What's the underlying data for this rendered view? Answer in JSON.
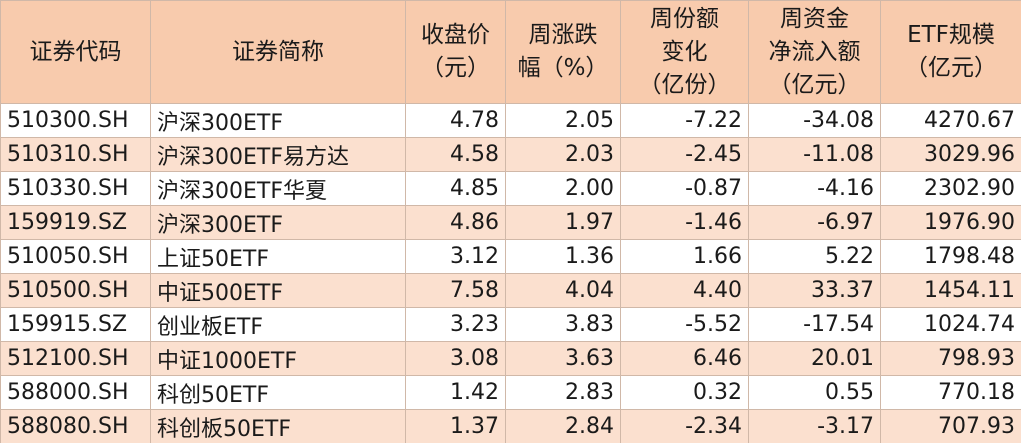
{
  "table": {
    "header": [
      [
        "证券代码"
      ],
      [
        "证券简称"
      ],
      [
        "收盘价",
        "（元）"
      ],
      [
        "周涨跌",
        "幅（%）"
      ],
      [
        "周份额",
        "变化",
        "（亿份）"
      ],
      [
        "周资金",
        "净流入额",
        "（亿元）"
      ],
      [
        "ETF规模",
        "（亿元）"
      ]
    ],
    "rows": [
      [
        "510300.SH",
        "沪深300ETF",
        "4.78",
        "2.05",
        "-7.22",
        "-34.08",
        "4270.67"
      ],
      [
        "510310.SH",
        "沪深300ETF易方达",
        "4.58",
        "2.03",
        "-2.45",
        "-11.08",
        "3029.96"
      ],
      [
        "510330.SH",
        "沪深300ETF华夏",
        "4.85",
        "2.00",
        "-0.87",
        "-4.16",
        "2302.90"
      ],
      [
        "159919.SZ",
        "沪深300ETF",
        "4.86",
        "1.97",
        "-1.46",
        "-6.97",
        "1976.90"
      ],
      [
        "510050.SH",
        "上证50ETF",
        "3.12",
        "1.36",
        "1.66",
        "5.22",
        "1798.48"
      ],
      [
        "510500.SH",
        "中证500ETF",
        "7.58",
        "4.04",
        "4.40",
        "33.37",
        "1454.11"
      ],
      [
        "159915.SZ",
        "创业板ETF",
        "3.23",
        "3.83",
        "-5.52",
        "-17.54",
        "1024.74"
      ],
      [
        "512100.SH",
        "中证1000ETF",
        "3.08",
        "3.63",
        "6.46",
        "20.01",
        "798.93"
      ],
      [
        "588000.SH",
        "科创50ETF",
        "1.42",
        "2.83",
        "0.32",
        "0.55",
        "770.18"
      ],
      [
        "588080.SH",
        "科创板50ETF",
        "1.37",
        "2.84",
        "-2.34",
        "-3.17",
        "707.93"
      ]
    ]
  }
}
